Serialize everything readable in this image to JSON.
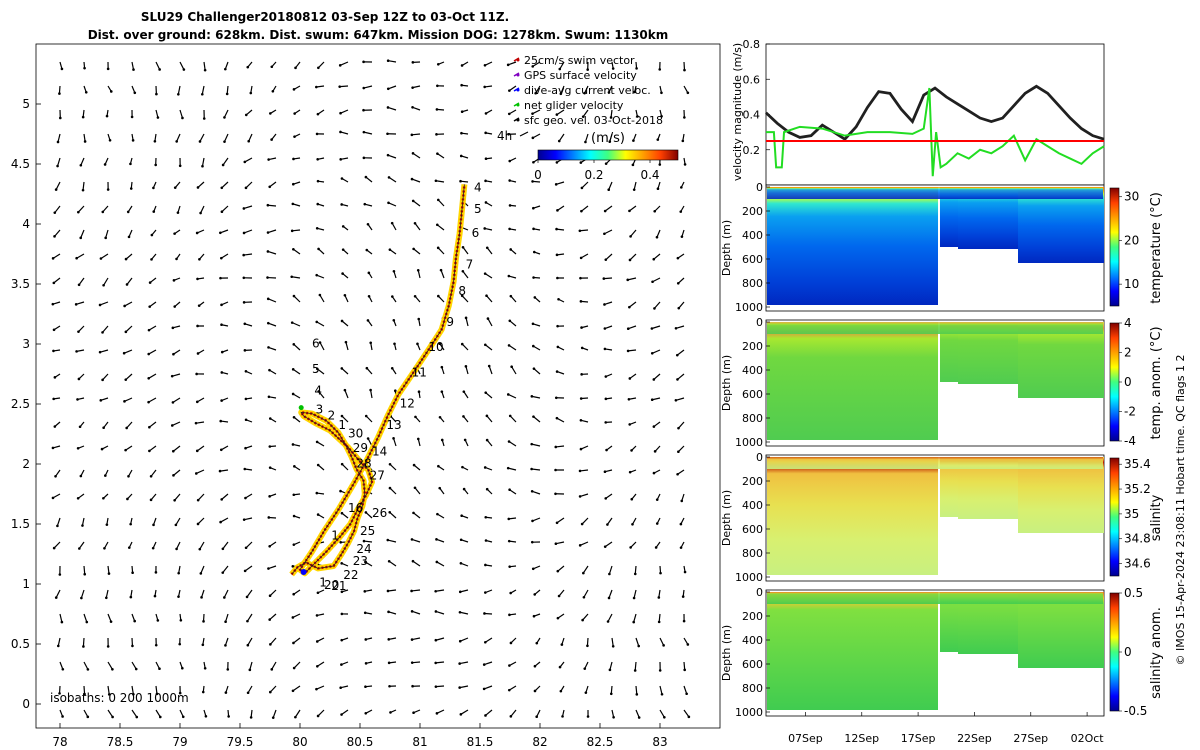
{
  "title_line1": "SLU29 Challenger20180812 03-Sep 12Z to 03-Oct 11Z.",
  "title_line2": "Dist. over ground: 628km. Dist. swum: 647km. Mission DOG: 1278km. Swum: 1130km",
  "footer_note": "© IMOS 15-Apr-2024 23:08:11 Hobart time. QC flags 1  2",
  "chart_data": [
    {
      "type": "scatter",
      "id": "map",
      "xlim": [
        77.8,
        83.5
      ],
      "ylim": [
        -0.2,
        5.5
      ],
      "xticks": [
        78,
        78.5,
        79,
        79.5,
        80,
        80.5,
        81,
        81.5,
        82,
        82.5,
        83
      ],
      "xtick_labels": [
        "78",
        "78.5",
        "79",
        "79.5",
        "80",
        "80.5",
        "81",
        "81.5",
        "82",
        "82.5",
        "83"
      ],
      "yticks": [
        0,
        0.5,
        1,
        1.5,
        2,
        2.5,
        3,
        3.5,
        4,
        4.5,
        5
      ],
      "ytick_labels": [
        "0",
        "0.5",
        "1",
        "1.5",
        "2",
        "2.5",
        "3",
        "3.5",
        "4",
        "4.5",
        "5"
      ],
      "legend": {
        "placement": "top-right",
        "entries": [
          {
            "label": "25cm/s swim vector",
            "color": "#c00000"
          },
          {
            "label": "GPS surface velocity",
            "color": "#8000c0"
          },
          {
            "label": "dive-avg current veloc.",
            "color": "#0000ff"
          },
          {
            "label": "net glider velocity",
            "color": "#00c000"
          },
          {
            "label": "sfc geo. vel. 03-Oct-2018",
            "color": "#000000"
          }
        ]
      },
      "scale_arrow_label": "4h",
      "colorbar": {
        "label": "(m/s)",
        "ticks": [
          0,
          0.2,
          0.4
        ],
        "tick_labels": [
          "0",
          "0.2",
          "0.4"
        ],
        "range": [
          0,
          0.5
        ]
      },
      "isobaths_label": "isobaths: 0   200   1000m",
      "track": [
        [
          79.93,
          1.08
        ],
        [
          79.98,
          1.14
        ],
        [
          80.05,
          1.18
        ],
        [
          80.15,
          1.13
        ],
        [
          80.28,
          1.15
        ],
        [
          80.34,
          1.24
        ],
        [
          80.4,
          1.34
        ],
        [
          80.45,
          1.44
        ],
        [
          80.48,
          1.55
        ],
        [
          80.52,
          1.65
        ],
        [
          80.54,
          1.75
        ],
        [
          80.53,
          1.86
        ],
        [
          80.47,
          1.96
        ],
        [
          80.43,
          2.06
        ],
        [
          80.38,
          2.16
        ],
        [
          80.32,
          2.26
        ],
        [
          80.22,
          2.36
        ],
        [
          80.1,
          2.42
        ],
        [
          80.01,
          2.43
        ],
        [
          80.03,
          2.4
        ],
        [
          80.13,
          2.34
        ],
        [
          80.25,
          2.28
        ],
        [
          80.4,
          2.14
        ],
        [
          80.5,
          2.02
        ],
        [
          80.57,
          1.95
        ],
        [
          80.6,
          1.85
        ],
        [
          80.55,
          1.74
        ],
        [
          80.48,
          1.62
        ],
        [
          80.42,
          1.5
        ],
        [
          80.33,
          1.39
        ],
        [
          80.22,
          1.27
        ],
        [
          80.12,
          1.17
        ],
        [
          80.04,
          1.09
        ],
        [
          80.0,
          1.12
        ],
        [
          80.1,
          1.27
        ],
        [
          80.2,
          1.44
        ],
        [
          80.32,
          1.62
        ],
        [
          80.45,
          1.84
        ],
        [
          80.55,
          2.02
        ],
        [
          80.65,
          2.22
        ],
        [
          80.73,
          2.4
        ],
        [
          80.82,
          2.58
        ],
        [
          80.95,
          2.77
        ],
        [
          81.07,
          2.95
        ],
        [
          81.18,
          3.12
        ],
        [
          81.24,
          3.32
        ],
        [
          81.28,
          3.52
        ],
        [
          81.3,
          3.72
        ],
        [
          81.33,
          3.92
        ],
        [
          81.35,
          4.12
        ],
        [
          81.37,
          4.33
        ]
      ],
      "track_labels": [
        {
          "text": "4",
          "x": 81.45,
          "y": 4.27
        },
        {
          "text": "5",
          "x": 81.45,
          "y": 4.09
        },
        {
          "text": "6",
          "x": 81.43,
          "y": 3.89
        },
        {
          "text": "7",
          "x": 81.38,
          "y": 3.63
        },
        {
          "text": "8",
          "x": 81.32,
          "y": 3.41
        },
        {
          "text": "9",
          "x": 81.22,
          "y": 3.15
        },
        {
          "text": "10",
          "x": 81.07,
          "y": 2.94
        },
        {
          "text": "11",
          "x": 80.93,
          "y": 2.73
        },
        {
          "text": "12",
          "x": 80.83,
          "y": 2.47
        },
        {
          "text": "13",
          "x": 80.72,
          "y": 2.29
        },
        {
          "text": "14",
          "x": 80.6,
          "y": 2.07
        },
        {
          "text": "26",
          "x": 80.6,
          "y": 1.56
        },
        {
          "text": "25",
          "x": 80.5,
          "y": 1.41
        },
        {
          "text": "24",
          "x": 80.47,
          "y": 1.26
        },
        {
          "text": "23",
          "x": 80.44,
          "y": 1.16
        },
        {
          "text": "22",
          "x": 80.36,
          "y": 1.04
        },
        {
          "text": "21",
          "x": 80.26,
          "y": 0.95
        },
        {
          "text": "20",
          "x": 80.2,
          "y": 0.96
        },
        {
          "text": "1",
          "x": 80.16,
          "y": 0.98
        },
        {
          "text": "6",
          "x": 80.1,
          "y": 2.97
        },
        {
          "text": "5",
          "x": 80.1,
          "y": 2.76
        },
        {
          "text": "4",
          "x": 80.12,
          "y": 2.58
        },
        {
          "text": "3",
          "x": 80.13,
          "y": 2.42
        },
        {
          "text": "2",
          "x": 80.23,
          "y": 2.37
        },
        {
          "text": "1",
          "x": 80.32,
          "y": 2.29
        },
        {
          "text": "30",
          "x": 80.4,
          "y": 2.22
        },
        {
          "text": "29",
          "x": 80.44,
          "y": 2.1
        },
        {
          "text": "28",
          "x": 80.47,
          "y": 1.97
        },
        {
          "text": "27",
          "x": 80.58,
          "y": 1.87
        },
        {
          "text": "16",
          "x": 80.4,
          "y": 1.6
        },
        {
          "text": "1",
          "x": 80.26,
          "y": 1.37
        }
      ]
    },
    {
      "type": "line",
      "id": "velocity",
      "ylabel": "velocity magnitude (m/s)",
      "ylim": [
        0,
        0.8
      ],
      "yticks": [
        0,
        0.2,
        0.4,
        0.6,
        0.8
      ],
      "ytick_labels": [
        "0",
        "0.2",
        "0.4",
        "0.6",
        "0.8"
      ],
      "xlim": [
        3.5,
        33.5
      ],
      "series": [
        {
          "color": "#202020",
          "x": [
            3.5,
            4.5,
            5.5,
            6.5,
            7.5,
            8.5,
            9.5,
            10.5,
            11.5,
            12.5,
            13.5,
            14.5,
            15.5,
            16.5,
            17.5,
            18.5,
            19.5,
            20.5,
            21.5,
            22.5,
            23.5,
            24.5,
            25.5,
            26.5,
            27.5,
            28.5,
            29.5,
            30.5,
            31.5,
            32.5,
            33.5
          ],
          "y": [
            0.41,
            0.35,
            0.3,
            0.27,
            0.28,
            0.34,
            0.3,
            0.26,
            0.33,
            0.44,
            0.53,
            0.52,
            0.43,
            0.36,
            0.51,
            0.55,
            0.5,
            0.46,
            0.42,
            0.38,
            0.36,
            0.38,
            0.45,
            0.52,
            0.56,
            0.52,
            0.45,
            0.38,
            0.32,
            0.28,
            0.26
          ]
        },
        {
          "color": "#22dd22",
          "x": [
            3.5,
            4.2,
            4.4,
            4.9,
            5.1,
            6.5,
            8.5,
            10.5,
            12.5,
            14.5,
            16.5,
            17.5,
            18.0,
            18.3,
            18.6,
            19.0,
            19.5,
            20.5,
            21.5,
            22.5,
            23.5,
            24.5,
            25.5,
            26.5,
            27.5,
            28.5,
            29.5,
            30.5,
            31.5,
            32.5,
            33.5
          ],
          "y": [
            0.3,
            0.3,
            0.1,
            0.1,
            0.3,
            0.33,
            0.32,
            0.28,
            0.3,
            0.3,
            0.29,
            0.32,
            0.55,
            0.05,
            0.3,
            0.1,
            0.12,
            0.18,
            0.15,
            0.2,
            0.18,
            0.22,
            0.28,
            0.14,
            0.26,
            0.22,
            0.18,
            0.15,
            0.12,
            0.18,
            0.22
          ]
        },
        {
          "color": "#ff0000",
          "x": [
            3.5,
            33.5
          ],
          "y": [
            0.25,
            0.25
          ]
        }
      ]
    },
    {
      "type": "heatmap",
      "id": "temperature",
      "ylabel": "Depth (m)",
      "colorbar_label": "temperature (°C)",
      "colorbar_ticks": [
        "10",
        "20",
        "30"
      ],
      "colorbar_range": [
        5,
        32
      ],
      "yticks": [
        "0",
        "200",
        "400",
        "600",
        "800",
        "1000"
      ]
    },
    {
      "type": "heatmap",
      "id": "temp_anomaly",
      "ylabel": "Depth (m)",
      "colorbar_label": "temp. anom. (°C)",
      "colorbar_ticks": [
        "-4",
        "-2",
        "0",
        "2",
        "4"
      ],
      "colorbar_range": [
        -4,
        4
      ],
      "yticks": [
        "0",
        "200",
        "400",
        "600",
        "800",
        "1000"
      ]
    },
    {
      "type": "heatmap",
      "id": "salinity",
      "ylabel": "Depth (m)",
      "colorbar_label": "salinity",
      "colorbar_ticks": [
        "34.6",
        "34.8",
        "35",
        "35.2",
        "35.4"
      ],
      "colorbar_range": [
        34.5,
        35.45
      ],
      "yticks": [
        "0",
        "200",
        "400",
        "600",
        "800",
        "1000"
      ]
    },
    {
      "type": "heatmap",
      "id": "salinity_anomaly",
      "ylabel": "Depth (m)",
      "colorbar_label": "salinity anom.",
      "colorbar_ticks": [
        "-0.5",
        "0",
        "0.5"
      ],
      "colorbar_range": [
        -0.5,
        0.5
      ],
      "yticks": [
        "0",
        "200",
        "400",
        "600",
        "800",
        "1000"
      ],
      "xtick_labels": [
        "07Sep",
        "12Sep",
        "17Sep",
        "22Sep",
        "27Sep",
        "02Oct"
      ],
      "xticks": [
        7,
        12,
        17,
        22,
        27,
        32
      ]
    }
  ]
}
